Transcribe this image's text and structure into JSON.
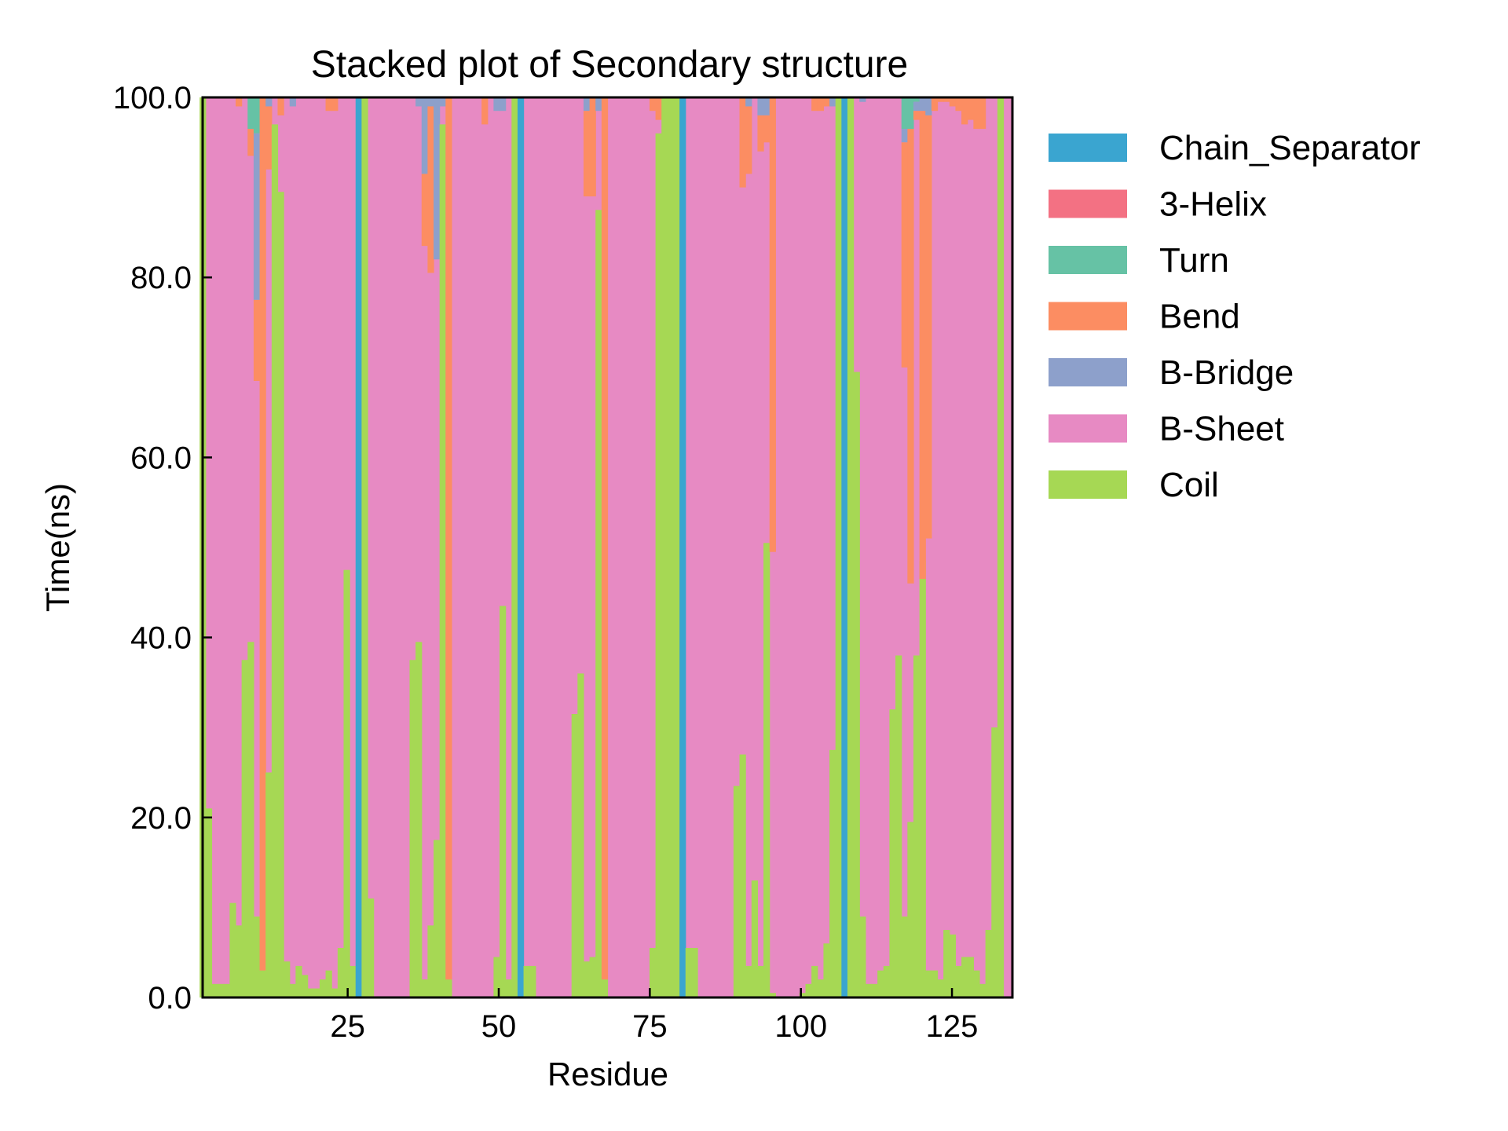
{
  "chart_data": {
    "type": "bar",
    "title": "Stacked plot of Secondary structure",
    "xlabel": "Residue",
    "ylabel": "Time(ns)",
    "xlim": [
      1,
      135
    ],
    "ylim": [
      0,
      100
    ],
    "xticks": [
      25,
      50,
      75,
      100,
      125
    ],
    "yticks": [
      0.0,
      20.0,
      40.0,
      60.0,
      80.0,
      100.0
    ],
    "ytick_labels": [
      "0.0",
      "20.0",
      "40.0",
      "60.0",
      "80.0",
      "100.0"
    ],
    "legend_position": "right-outside",
    "series": [
      {
        "name": "Chain_Separator",
        "color": "#3aa5d0"
      },
      {
        "name": "3-Helix",
        "color": "#f37183"
      },
      {
        "name": "Turn",
        "color": "#66c2a5"
      },
      {
        "name": "Bend",
        "color": "#fc8d62"
      },
      {
        "name": "B-Bridge",
        "color": "#8da0cb"
      },
      {
        "name": "B-Sheet",
        "color": "#e78ac3"
      },
      {
        "name": "Coil",
        "color": "#a6d854"
      }
    ],
    "residues": [
      {
        "r": 1,
        "coil": 100
      },
      {
        "r": 2,
        "coil": 21
      },
      {
        "r": 3,
        "coil": 1.5
      },
      {
        "r": 4,
        "coil": 1.5
      },
      {
        "r": 5,
        "coil": 1.5
      },
      {
        "r": 6,
        "coil": 10.5
      },
      {
        "r": 7,
        "coil": 8,
        "bend": 1
      },
      {
        "r": 8,
        "coil": 37.5
      },
      {
        "r": 9,
        "coil": 39.5,
        "bend": 3,
        "turn": 3.5
      },
      {
        "r": 10,
        "coil": 9,
        "bend": 9,
        "bridge": 18.5,
        "turn": 4
      },
      {
        "r": 11,
        "coil": 3.5,
        "bend": 97
      },
      {
        "r": 12,
        "coil": 25,
        "bend": 7,
        "bridge": 1
      },
      {
        "r": 13,
        "coil": 97
      },
      {
        "r": 14,
        "coil": 89.5,
        "bend": 2
      },
      {
        "r": 15,
        "coil": 4
      },
      {
        "r": 16,
        "coil": 1.5,
        "bridge": 1
      },
      {
        "r": 17,
        "coil": 3.5
      },
      {
        "r": 18,
        "coil": 2.5
      },
      {
        "r": 19,
        "coil": 1
      },
      {
        "r": 20,
        "coil": 1
      },
      {
        "r": 21,
        "coil": 2
      },
      {
        "r": 22,
        "coil": 3,
        "bend": 1.5
      },
      {
        "r": 23,
        "coil": 1,
        "bend": 1.5
      },
      {
        "r": 24,
        "coil": 5.5
      },
      {
        "r": 25,
        "coil": 47.5
      },
      {
        "r": 26,
        "coil": 3.5
      },
      {
        "r": 27,
        "sep": 100
      },
      {
        "r": 28,
        "coil": 100
      },
      {
        "r": 29,
        "coil": 11
      },
      {
        "r": 36,
        "coil": 37.5
      },
      {
        "r": 37,
        "coil": 39.5,
        "bridge": 1
      },
      {
        "r": 38,
        "coil": 2,
        "bend": 8,
        "bridge": 8.5
      },
      {
        "r": 39,
        "coil": 8,
        "bend": 18.5,
        "bridge": 1
      },
      {
        "r": 40,
        "coil": 17.5,
        "bridge": 18
      },
      {
        "r": 41,
        "coil": 97,
        "bridge": 1
      },
      {
        "r": 42,
        "coil": 2,
        "bend": 98
      },
      {
        "r": 48,
        "bend": 3
      },
      {
        "r": 50,
        "coil": 4.5,
        "bridge": 1.5
      },
      {
        "r": 51,
        "coil": 43.5,
        "bridge": 1.5
      },
      {
        "r": 52,
        "coil": 2
      },
      {
        "r": 53,
        "coil": 100
      },
      {
        "r": 54,
        "sep": 100
      },
      {
        "r": 55,
        "coil": 3.5
      },
      {
        "r": 56,
        "coil": 3.5
      },
      {
        "r": 63,
        "coil": 31.5
      },
      {
        "r": 64,
        "coil": 36
      },
      {
        "r": 65,
        "coil": 4,
        "bend": 9.5,
        "bridge": 1.5
      },
      {
        "r": 66,
        "coil": 4.5,
        "bend": 11
      },
      {
        "r": 67,
        "coil": 87.5,
        "bridge": 1.5
      },
      {
        "r": 68,
        "coil": 2,
        "bend": 98
      },
      {
        "r": 76,
        "coil": 5.5,
        "bend": 1.5
      },
      {
        "r": 77,
        "coil": 96,
        "bend": 2.5
      },
      {
        "r": 78,
        "coil": 100
      },
      {
        "r": 79,
        "coil": 100
      },
      {
        "r": 80,
        "coil": 100
      },
      {
        "r": 81,
        "sep": 100
      },
      {
        "r": 82,
        "coil": 5.5
      },
      {
        "r": 83,
        "coil": 5.5
      },
      {
        "r": 90,
        "coil": 23.5
      },
      {
        "r": 91,
        "coil": 27,
        "bend": 10
      },
      {
        "r": 92,
        "coil": 3.5,
        "bend": 7.5,
        "bridge": 1
      },
      {
        "r": 93,
        "coil": 13
      },
      {
        "r": 94,
        "coil": 3.5,
        "bend": 4,
        "bridge": 2
      },
      {
        "r": 95,
        "coil": 50.5,
        "bend": 3,
        "bridge": 2
      },
      {
        "r": 96,
        "coil": 0.5,
        "bend": 50.5
      },
      {
        "r": 101,
        "coil": 0.5
      },
      {
        "r": 102,
        "coil": 1.5
      },
      {
        "r": 103,
        "coil": 3.5,
        "bend": 1.5
      },
      {
        "r": 104,
        "coil": 2,
        "bend": 1.5
      },
      {
        "r": 105,
        "coil": 6,
        "bend": 1
      },
      {
        "r": 106,
        "coil": 27.5,
        "bridge": 1
      },
      {
        "r": 107,
        "coil": 100
      },
      {
        "r": 108,
        "sep": 100
      },
      {
        "r": 109,
        "coil": 100
      },
      {
        "r": 110,
        "coil": 69.5
      },
      {
        "r": 111,
        "coil": 9,
        "bridge": 0.5
      },
      {
        "r": 112,
        "coil": 1.5
      },
      {
        "r": 113,
        "coil": 1.5
      },
      {
        "r": 114,
        "coil": 3
      },
      {
        "r": 115,
        "coil": 3.5
      },
      {
        "r": 116,
        "coil": 32
      },
      {
        "r": 117,
        "coil": 38
      },
      {
        "r": 118,
        "coil": 9,
        "bend": 25,
        "bridge": 1.5,
        "turn": 3.5
      },
      {
        "r": 119,
        "coil": 19.5,
        "bend": 50.5,
        "turn": 3.5
      },
      {
        "r": 120,
        "coil": 38,
        "bend": 1,
        "bridge": 1,
        "turn": 0.5
      },
      {
        "r": 121,
        "coil": 48.5,
        "bend": 52,
        "bridge": 1.5
      },
      {
        "r": 122,
        "coil": 3,
        "bend": 47,
        "bridge": 2
      },
      {
        "r": 123,
        "coil": 3,
        "bend": 1.5
      },
      {
        "r": 124,
        "coil": 2,
        "bend": 0.5
      },
      {
        "r": 125,
        "coil": 7.5,
        "bend": 0.5
      },
      {
        "r": 126,
        "coil": 7,
        "bend": 1
      },
      {
        "r": 127,
        "coil": 3.5,
        "bend": 1.5
      },
      {
        "r": 128,
        "coil": 4.5,
        "bend": 3
      },
      {
        "r": 129,
        "coil": 4.5,
        "bend": 2.5
      },
      {
        "r": 130,
        "coil": 3,
        "bend": 3.5
      },
      {
        "r": 131,
        "coil": 1.5,
        "bend": 3.5
      },
      {
        "r": 132,
        "coil": 7.5
      },
      {
        "r": 133,
        "coil": 30
      },
      {
        "r": 134,
        "coil": 100
      }
    ]
  }
}
